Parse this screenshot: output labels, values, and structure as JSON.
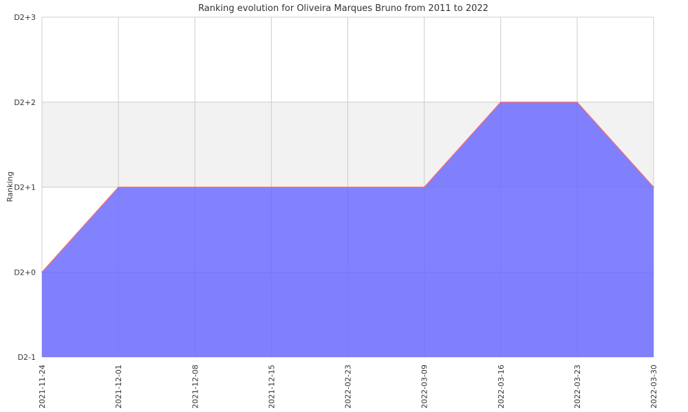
{
  "chart_data": {
    "type": "area",
    "title": "Ranking evolution for Oliveira Marques Bruno from 2011 to 2022",
    "xlabel": "",
    "ylabel": "Ranking",
    "x": [
      "2021-11-24",
      "2021-12-01",
      "2021-12-08",
      "2021-12-15",
      "2022-02-23",
      "2022-03-09",
      "2022-03-16",
      "2022-03-23",
      "2022-03-30"
    ],
    "y_ticks": [
      "D2-1",
      "D2+0",
      "D2+1",
      "D2+2",
      "D2+3"
    ],
    "series": [
      {
        "values": [
          "D2+0",
          "D2+1",
          "D2+1",
          "D2+1",
          "D2+1",
          "D2+1",
          "D2+2",
          "D2+2",
          "D2+1"
        ]
      }
    ],
    "grid": true,
    "colors": {
      "fill": "#6666ff",
      "line": "#ff6b6b",
      "band": "#f2f2f2",
      "grid": "#cccccc"
    }
  }
}
